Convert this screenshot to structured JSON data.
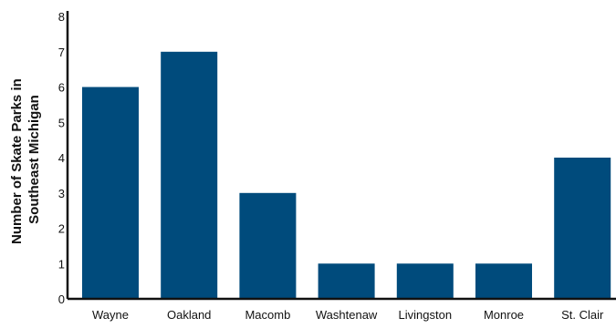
{
  "chart_data": {
    "type": "bar",
    "categories": [
      "Wayne",
      "Oakland",
      "Macomb",
      "Washtenaw",
      "Livingston",
      "Monroe",
      "St. Clair"
    ],
    "values": [
      6,
      7,
      3,
      1,
      1,
      1,
      4
    ],
    "ylabel_line1": "Number of Skate Parks in",
    "ylabel_line2": "Southeast Michigan",
    "xlabel": "",
    "ylim": [
      0,
      8
    ],
    "yticks": [
      "0",
      "1",
      "2",
      "3",
      "4",
      "5",
      "6",
      "7",
      "8"
    ],
    "grid": false,
    "bar_color": "#004b7c",
    "axis_color": "#111111"
  }
}
